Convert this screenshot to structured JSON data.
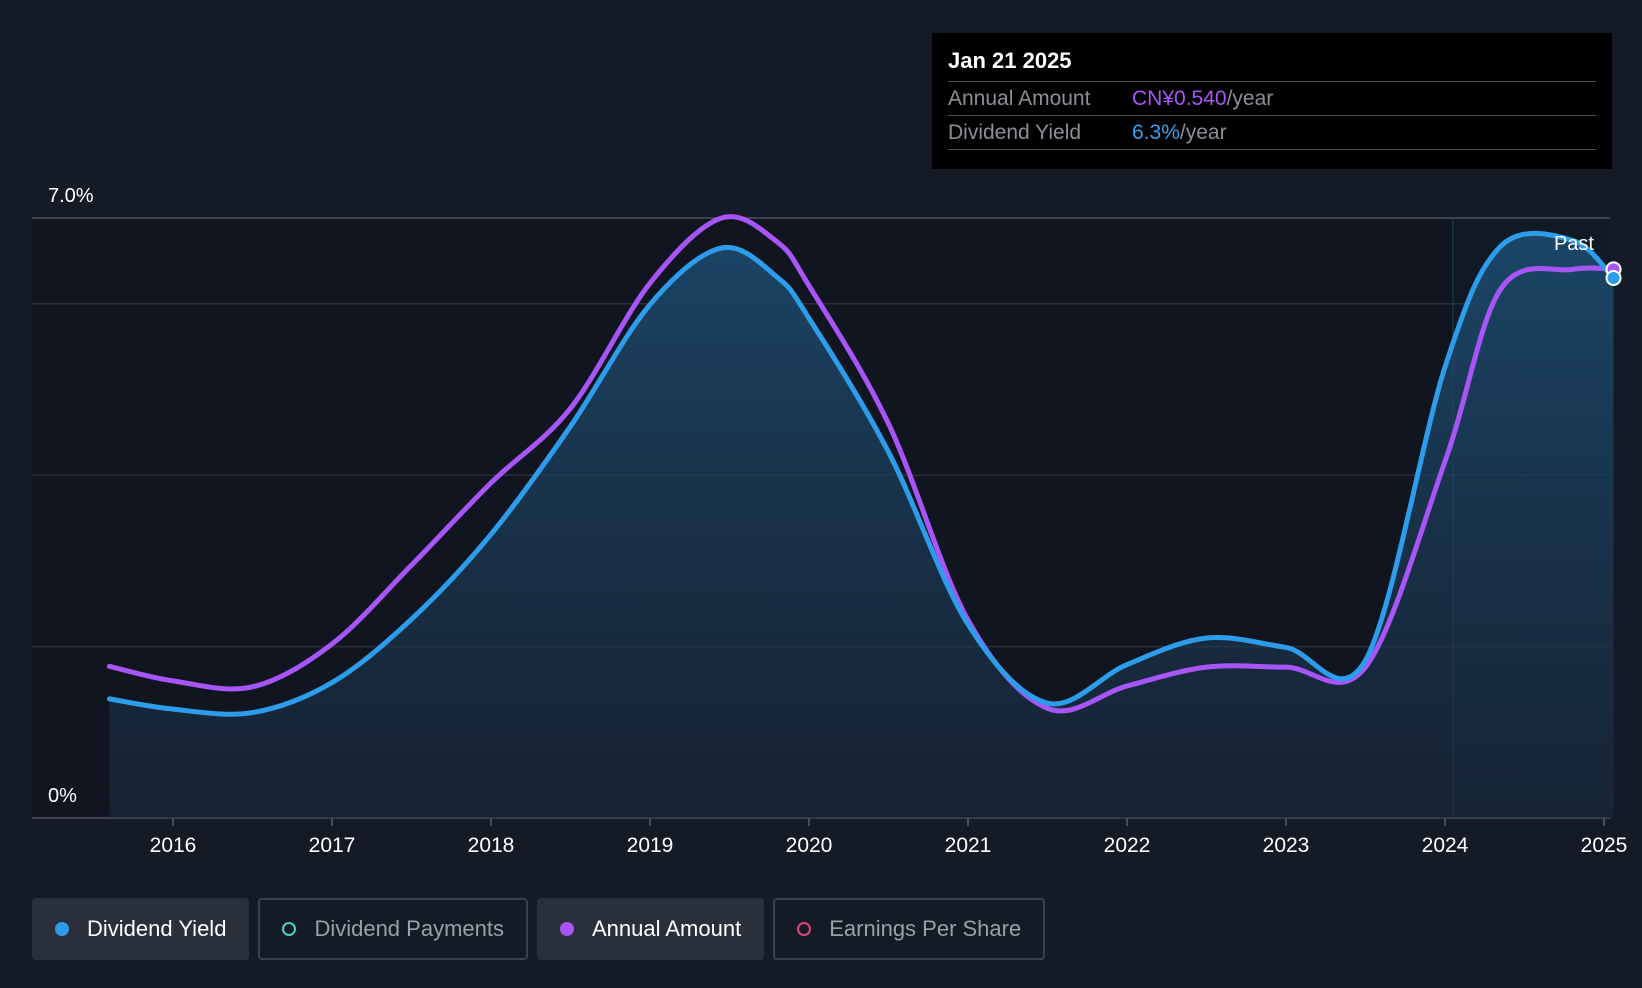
{
  "tooltip": {
    "date": "Jan 21 2025",
    "rows": [
      {
        "label": "Annual Amount",
        "value": "CN¥0.540",
        "unit": "/year",
        "color": "#a855f7"
      },
      {
        "label": "Dividend Yield",
        "value": "6.3%",
        "unit": "/year",
        "color": "#3b9ef0"
      }
    ]
  },
  "legend": [
    {
      "label": "Dividend Yield",
      "color": "#2d9cea",
      "active": true
    },
    {
      "label": "Dividend Payments",
      "color": "#4fd1c5",
      "active": false
    },
    {
      "label": "Annual Amount",
      "color": "#a855f7",
      "active": true
    },
    {
      "label": "Earnings Per Share",
      "color": "#d9467a",
      "active": false
    }
  ],
  "chart_data": {
    "type": "line",
    "y_tick_labels": [
      "7.0%",
      "0%"
    ],
    "ylim": [
      0,
      7.0
    ],
    "x_tick_labels": [
      "2016",
      "2017",
      "2018",
      "2019",
      "2020",
      "2021",
      "2022",
      "2023",
      "2024",
      "2025"
    ],
    "xlim": [
      2015.2,
      2025.06
    ],
    "past_label": "Past",
    "past_start": 2024.05,
    "grid": true,
    "series": [
      {
        "name": "Dividend Yield",
        "color": "#2d9cea",
        "area": true,
        "x": [
          2015.6,
          2016.0,
          2016.5,
          2017.0,
          2017.5,
          2018.0,
          2018.5,
          2019.0,
          2019.45,
          2019.8,
          2020.0,
          2020.5,
          2021.0,
          2021.5,
          2022.0,
          2022.5,
          2023.0,
          2023.5,
          2024.0,
          2024.35,
          2024.8,
          2025.06
        ],
        "y": [
          1.39,
          1.27,
          1.23,
          1.58,
          2.32,
          3.31,
          4.57,
          5.99,
          6.65,
          6.31,
          5.83,
          4.27,
          2.26,
          1.34,
          1.79,
          2.1,
          1.99,
          1.84,
          5.26,
          6.67,
          6.74,
          6.3
        ]
      },
      {
        "name": "Annual Amount",
        "color": "#a855f7",
        "area": false,
        "x": [
          2015.6,
          2016.0,
          2016.5,
          2017.0,
          2017.5,
          2018.0,
          2018.5,
          2019.0,
          2019.45,
          2019.8,
          2020.0,
          2020.5,
          2021.0,
          2021.5,
          2022.0,
          2022.5,
          2023.0,
          2023.5,
          2024.0,
          2024.35,
          2024.8,
          2025.06
        ],
        "y": [
          1.77,
          1.6,
          1.53,
          2.03,
          2.95,
          3.91,
          4.78,
          6.24,
          7.0,
          6.72,
          6.21,
          4.6,
          2.31,
          1.28,
          1.54,
          1.76,
          1.76,
          1.76,
          4.16,
          6.17,
          6.4,
          6.4
        ]
      }
    ]
  }
}
